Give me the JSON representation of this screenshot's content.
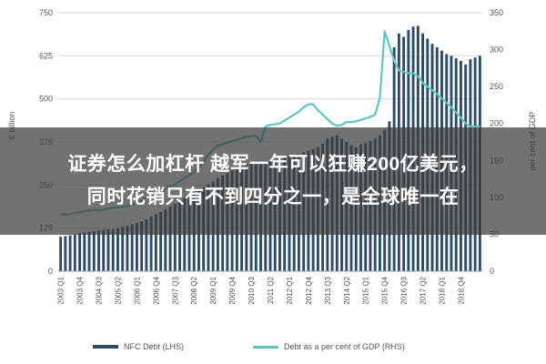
{
  "chart_data": {
    "type": "bar",
    "x_labels": [
      "2003 Q1",
      "2003 Q4",
      "2004 Q3",
      "2005 Q2",
      "2006 Q1",
      "2006 Q4",
      "2007 Q3",
      "2008 Q2",
      "2009 Q1",
      "2009 Q4",
      "2010 Q3",
      "2011 Q2",
      "2012 Q1",
      "2012 Q4",
      "2013 Q3",
      "2014 Q2",
      "2015 Q1",
      "2015 Q4",
      "2016 Q3",
      "2017 Q2",
      "2018 Q1",
      "2018 Q4"
    ],
    "ylabel_left": "€ billion",
    "ylabel_right": "per cent of GDP",
    "left_ticks": [
      "0",
      "125",
      "250",
      "375",
      "500",
      "625",
      "750"
    ],
    "right_ticks": [
      "0",
      "50",
      "100",
      "150",
      "200",
      "250",
      "300",
      "350"
    ],
    "ylim_left": [
      0,
      750
    ],
    "ylim_right": [
      0,
      350
    ],
    "grid": true,
    "legend_position": "bottom",
    "series": [
      {
        "name": "NFC Debt (LHS)",
        "axis": "left",
        "type": "bar",
        "values": [
          100,
          102,
          104,
          106,
          110,
          112,
          114,
          116,
          118,
          120,
          121,
          122,
          124,
          128,
          132,
          136,
          140,
          145,
          150,
          158,
          165,
          172,
          180,
          188,
          196,
          205,
          212,
          220,
          228,
          236,
          244,
          252,
          260,
          270,
          278,
          285,
          292,
          298,
          305,
          310,
          312,
          314,
          316,
          318,
          320,
          322,
          326,
          330,
          334,
          336,
          340,
          345,
          350,
          355,
          360,
          370,
          385,
          390,
          395,
          385,
          375,
          365,
          360,
          368,
          372,
          378,
          385,
          395,
          410,
          435,
          650,
          690,
          680,
          700,
          710,
          712,
          690,
          675,
          660,
          650,
          640,
          630,
          625,
          618,
          610,
          600,
          615,
          620,
          625
        ]
      },
      {
        "name": "Debt as a per cent of GDP (RHS)",
        "axis": "right",
        "type": "line",
        "values": [
          76,
          77,
          77,
          79,
          80,
          81,
          82,
          83,
          82,
          83,
          85,
          86,
          86,
          87,
          88,
          90,
          92,
          96,
          100,
          103,
          106,
          109,
          112,
          115,
          118,
          122,
          126,
          130,
          134,
          140,
          148,
          158,
          165,
          170,
          172,
          174,
          176,
          178,
          180,
          182,
          183,
          183,
          175,
          196,
          198,
          199,
          200,
          204,
          208,
          212,
          216,
          222,
          226,
          226,
          218,
          212,
          206,
          200,
          197,
          198,
          202,
          202,
          203,
          205,
          207,
          209,
          212,
          235,
          325,
          305,
          285,
          272,
          270,
          268,
          268,
          264,
          255,
          250,
          245,
          240,
          234,
          228,
          222,
          215,
          208,
          200,
          196,
          196,
          196
        ]
      }
    ],
    "colors": {
      "bar": "#2d4a67",
      "line": "#5ec7c4"
    }
  },
  "overlay": {
    "line1": "证券怎么加杠杆 越军一年可以狂赚200亿美元，",
    "line2": "同时花销只有不到四分之一，是全球唯一在"
  }
}
